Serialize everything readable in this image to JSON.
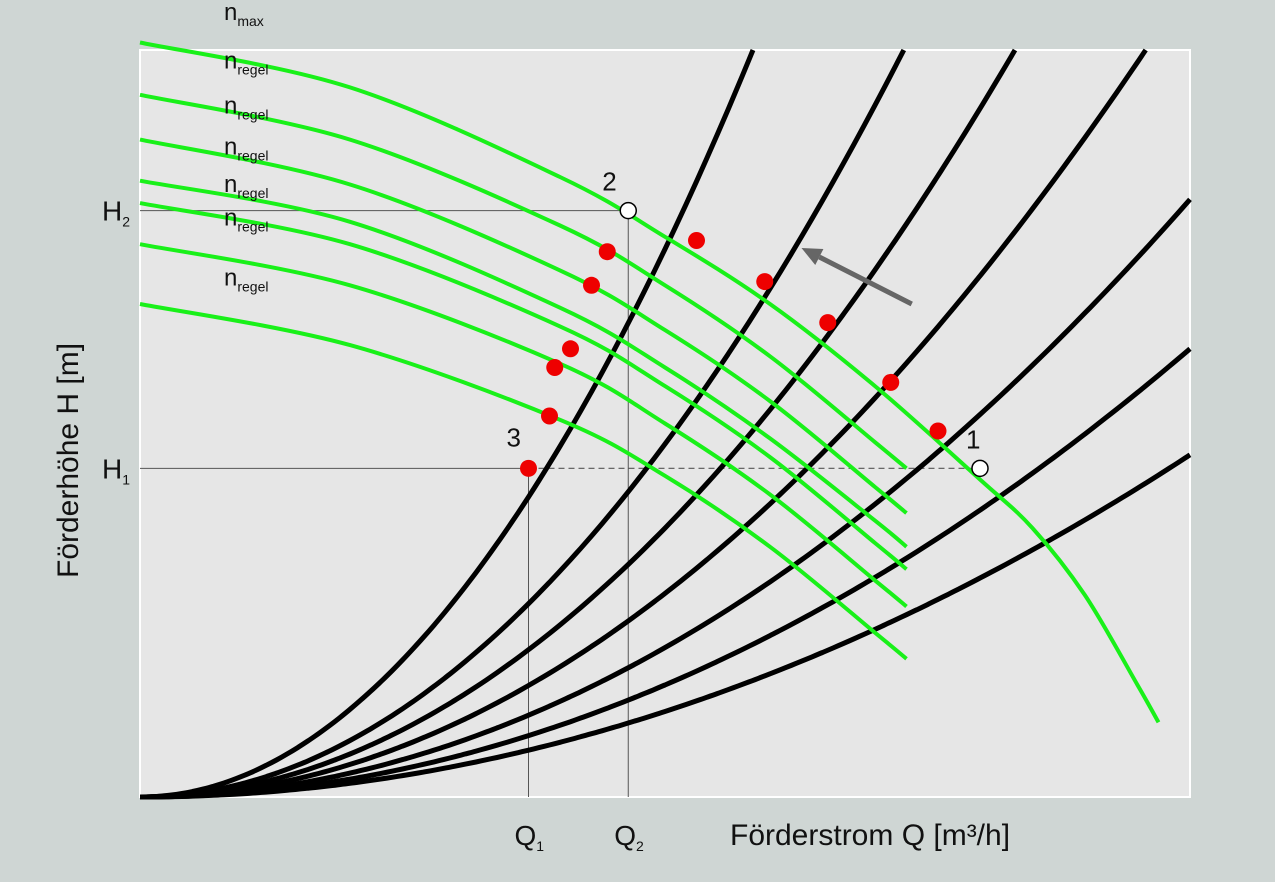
{
  "chart_data": {
    "type": "line",
    "title": "",
    "xlabel": "Förderstrom Q  [m³/h]",
    "ylabel": "Förderhöhe H  [m]",
    "x_ticks": [
      {
        "main": "Q",
        "sub": "1",
        "x": 3.7
      },
      {
        "main": "Q",
        "sub": "2",
        "x": 4.65
      }
    ],
    "y_ticks": [
      {
        "main": "H",
        "sub": "1",
        "y": 4.4
      },
      {
        "main": "H",
        "sub": "2",
        "y": 7.85
      }
    ],
    "xlim": [
      0,
      10
    ],
    "ylim": [
      0,
      10
    ],
    "grid": false,
    "pump_curves": [
      {
        "label_main": "n",
        "label_sub": "max",
        "h0": 10.1,
        "points": [
          [
            0,
            10.1
          ],
          [
            2,
            9.5
          ],
          [
            4,
            8.3
          ],
          [
            5,
            7.5
          ],
          [
            6,
            6.6
          ],
          [
            7,
            5.5
          ],
          [
            8,
            4.25
          ],
          [
            8.5,
            3.6
          ],
          [
            9,
            2.7
          ],
          [
            9.5,
            1.5
          ],
          [
            9.7,
            1.0
          ]
        ]
      },
      {
        "label_main": "n",
        "label_sub": "regel",
        "h0": 9.4,
        "points": [
          [
            0,
            9.4
          ],
          [
            2,
            8.8
          ],
          [
            4,
            7.65
          ],
          [
            5,
            6.85
          ],
          [
            6,
            5.9
          ],
          [
            7,
            4.75
          ],
          [
            7.3,
            4.4
          ]
        ]
      },
      {
        "label_main": "n",
        "label_sub": "regel",
        "h0": 8.8,
        "points": [
          [
            0,
            8.8
          ],
          [
            2,
            8.2
          ],
          [
            4,
            7.05
          ],
          [
            5,
            6.25
          ],
          [
            6,
            5.3
          ],
          [
            7,
            4.15
          ],
          [
            7.3,
            3.8
          ]
        ]
      },
      {
        "label_main": "n",
        "label_sub": "regel",
        "h0": 8.25,
        "points": [
          [
            0,
            8.25
          ],
          [
            2,
            7.7
          ],
          [
            4,
            6.55
          ],
          [
            5,
            5.75
          ],
          [
            6,
            4.8
          ],
          [
            7,
            3.7
          ],
          [
            7.3,
            3.35
          ]
        ]
      },
      {
        "label_main": "n",
        "label_sub": "regel",
        "h0": 7.95,
        "points": [
          [
            0,
            7.95
          ],
          [
            2,
            7.4
          ],
          [
            4,
            6.3
          ],
          [
            5,
            5.5
          ],
          [
            6,
            4.55
          ],
          [
            7,
            3.4
          ],
          [
            7.3,
            3.05
          ]
        ]
      },
      {
        "label_main": "n",
        "label_sub": "regel",
        "h0": 7.4,
        "points": [
          [
            0,
            7.4
          ],
          [
            2,
            6.85
          ],
          [
            4,
            5.8
          ],
          [
            5,
            5.0
          ],
          [
            6,
            4.05
          ],
          [
            7,
            2.9
          ],
          [
            7.3,
            2.55
          ]
        ]
      },
      {
        "label_main": "n",
        "label_sub": "regel",
        "h0": 6.6,
        "points": [
          [
            0,
            6.6
          ],
          [
            2,
            6.05
          ],
          [
            4,
            5.05
          ],
          [
            5,
            4.3
          ],
          [
            6,
            3.35
          ],
          [
            7,
            2.2
          ],
          [
            7.3,
            1.85
          ]
        ]
      }
    ],
    "system_curves": [
      {
        "k": 0.2934
      },
      {
        "k": 0.189
      },
      {
        "k": 0.144
      },
      {
        "k": 0.109
      },
      {
        "k": 0.08
      },
      {
        "k": 0.06
      },
      {
        "k": 0.0458
      }
    ],
    "operating_points": [
      {
        "label": "1",
        "x": 8.0,
        "y": 4.4,
        "style": "open"
      },
      {
        "label": "2",
        "x": 4.65,
        "y": 7.85,
        "style": "open"
      },
      {
        "label": "3",
        "x": 3.7,
        "y": 4.4,
        "style": "filled"
      },
      {
        "label": "",
        "x": 4.45,
        "y": 7.3,
        "style": "filled"
      },
      {
        "label": "",
        "x": 4.3,
        "y": 6.85,
        "style": "filled"
      },
      {
        "label": "",
        "x": 4.1,
        "y": 6.0,
        "style": "filled"
      },
      {
        "label": "",
        "x": 3.95,
        "y": 5.75,
        "style": "filled"
      },
      {
        "label": "",
        "x": 3.9,
        "y": 5.1,
        "style": "filled"
      },
      {
        "label": "",
        "x": 5.3,
        "y": 7.45,
        "style": "filled"
      },
      {
        "label": "",
        "x": 5.95,
        "y": 6.9,
        "style": "filled"
      },
      {
        "label": "",
        "x": 6.55,
        "y": 6.35,
        "style": "filled"
      },
      {
        "label": "",
        "x": 7.15,
        "y": 5.55,
        "style": "filled"
      },
      {
        "label": "",
        "x": 7.6,
        "y": 4.9,
        "style": "filled"
      }
    ],
    "arrow": {
      "from": [
        7.35,
        6.6
      ],
      "to": [
        6.3,
        7.35
      ],
      "color": "#666666"
    },
    "colors": {
      "background": "#cfd6d4",
      "plot_background": "#e6e6e6",
      "pump_curve": "#19f019",
      "system_curve": "#000000",
      "filled_point": "#ee0000",
      "open_point": "#ffffff",
      "reference_line": "#555555"
    }
  }
}
